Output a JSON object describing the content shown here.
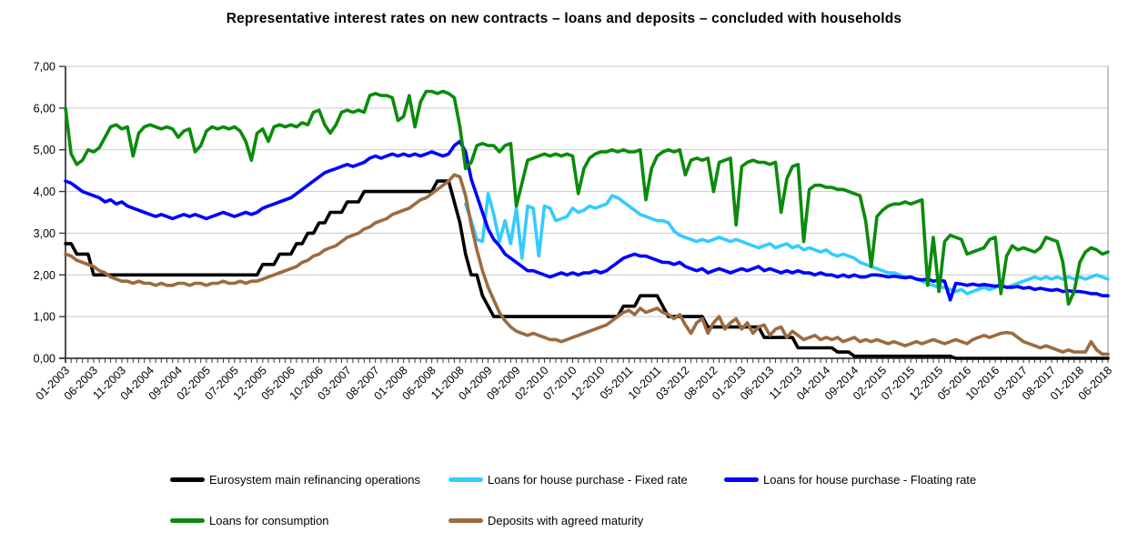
{
  "chart": {
    "title": "Representative interest rates on new contracts – loans and deposits – concluded with households"
  },
  "chart_data": {
    "type": "line",
    "title": "Representative interest rates on new contracts – loans and deposits – concluded with households",
    "xlabel": "",
    "ylabel": "",
    "ylim": [
      0,
      7
    ],
    "grid": true,
    "legend_position": "bottom",
    "x_months_count": 186,
    "x_start": "01-2003",
    "x_end": "06-2018",
    "x_tick_every_months": 5,
    "x_tick_labels": [
      "01-2003",
      "06-2003",
      "11-2003",
      "04-2004",
      "09-2004",
      "02-2005",
      "07-2005",
      "12-2005",
      "05-2006",
      "10-2006",
      "03-2007",
      "08-2007",
      "01-2008",
      "06-2008",
      "11-2008",
      "04-2009",
      "09-2009",
      "02-2010",
      "07-2010",
      "12-2010",
      "05-2011",
      "10-2011",
      "03-2012",
      "08-2012",
      "01-2013",
      "06-2013",
      "11-2013",
      "04-2014",
      "09-2014",
      "02-2015",
      "07-2015",
      "12-2015",
      "05-2016",
      "10-2016",
      "03-2017",
      "08-2017",
      "01-2018",
      "06-2018"
    ],
    "y_ticks": [
      "0,00",
      "1,00",
      "2,00",
      "3,00",
      "4,00",
      "5,00",
      "6,00",
      "7,00"
    ],
    "series": [
      {
        "name": "Eurosystem main refinancing operations",
        "key": "mro",
        "color": "#000000",
        "values": [
          2.75,
          2.75,
          2.5,
          2.5,
          2.5,
          2.0,
          2.0,
          2.0,
          2.0,
          2.0,
          2.0,
          2.0,
          2.0,
          2.0,
          2.0,
          2.0,
          2.0,
          2.0,
          2.0,
          2.0,
          2.0,
          2.0,
          2.0,
          2.0,
          2.0,
          2.0,
          2.0,
          2.0,
          2.0,
          2.0,
          2.0,
          2.0,
          2.0,
          2.0,
          2.0,
          2.25,
          2.25,
          2.25,
          2.5,
          2.5,
          2.5,
          2.75,
          2.75,
          3.0,
          3.0,
          3.25,
          3.25,
          3.5,
          3.5,
          3.5,
          3.75,
          3.75,
          3.75,
          4.0,
          4.0,
          4.0,
          4.0,
          4.0,
          4.0,
          4.0,
          4.0,
          4.0,
          4.0,
          4.0,
          4.0,
          4.0,
          4.25,
          4.25,
          4.25,
          3.75,
          3.25,
          2.5,
          2.0,
          2.0,
          1.5,
          1.25,
          1.0,
          1.0,
          1.0,
          1.0,
          1.0,
          1.0,
          1.0,
          1.0,
          1.0,
          1.0,
          1.0,
          1.0,
          1.0,
          1.0,
          1.0,
          1.0,
          1.0,
          1.0,
          1.0,
          1.0,
          1.0,
          1.0,
          1.0,
          1.25,
          1.25,
          1.25,
          1.5,
          1.5,
          1.5,
          1.5,
          1.25,
          1.0,
          1.0,
          1.0,
          1.0,
          1.0,
          1.0,
          1.0,
          0.75,
          0.75,
          0.75,
          0.75,
          0.75,
          0.75,
          0.75,
          0.75,
          0.75,
          0.75,
          0.5,
          0.5,
          0.5,
          0.5,
          0.5,
          0.5,
          0.25,
          0.25,
          0.25,
          0.25,
          0.25,
          0.25,
          0.25,
          0.15,
          0.15,
          0.15,
          0.05,
          0.05,
          0.05,
          0.05,
          0.05,
          0.05,
          0.05,
          0.05,
          0.05,
          0.05,
          0.05,
          0.05,
          0.05,
          0.05,
          0.05,
          0.05,
          0.05,
          0.05,
          0.0,
          0.0,
          0.0,
          0.0,
          0.0,
          0.0,
          0.0,
          0.0,
          0.0,
          0.0,
          0.0,
          0.0,
          0.0,
          0.0,
          0.0,
          0.0,
          0.0,
          0.0,
          0.0,
          0.0,
          0.0,
          0.0,
          0.0,
          0.0,
          0.0,
          0.0,
          0.0,
          0.0
        ]
      },
      {
        "name": "Loans for house purchase - Fixed rate",
        "key": "house-fixed",
        "color": "#33CCFF",
        "values": [
          null,
          null,
          null,
          null,
          null,
          null,
          null,
          null,
          null,
          null,
          null,
          null,
          null,
          null,
          null,
          null,
          null,
          null,
          null,
          null,
          null,
          null,
          null,
          null,
          null,
          null,
          null,
          null,
          null,
          null,
          null,
          null,
          null,
          null,
          null,
          null,
          null,
          null,
          null,
          null,
          null,
          null,
          null,
          null,
          null,
          null,
          null,
          null,
          null,
          null,
          null,
          null,
          null,
          null,
          null,
          null,
          null,
          null,
          null,
          null,
          null,
          null,
          null,
          null,
          null,
          null,
          null,
          null,
          null,
          null,
          null,
          3.7,
          3.3,
          2.85,
          2.8,
          3.95,
          3.45,
          2.8,
          3.3,
          2.75,
          3.6,
          2.4,
          3.65,
          3.6,
          2.45,
          3.65,
          3.6,
          3.3,
          3.35,
          3.4,
          3.6,
          3.5,
          3.55,
          3.65,
          3.6,
          3.65,
          3.7,
          3.9,
          3.85,
          3.75,
          3.65,
          3.55,
          3.45,
          3.4,
          3.35,
          3.3,
          3.3,
          3.25,
          3.05,
          2.95,
          2.9,
          2.85,
          2.8,
          2.85,
          2.8,
          2.85,
          2.9,
          2.85,
          2.8,
          2.85,
          2.8,
          2.75,
          2.7,
          2.65,
          2.7,
          2.75,
          2.65,
          2.7,
          2.75,
          2.65,
          2.7,
          2.6,
          2.65,
          2.6,
          2.55,
          2.6,
          2.5,
          2.45,
          2.5,
          2.45,
          2.4,
          2.3,
          2.25,
          2.2,
          2.15,
          2.1,
          2.05,
          2.05,
          2.0,
          1.95,
          1.95,
          1.9,
          1.85,
          1.8,
          1.75,
          1.7,
          1.7,
          1.65,
          1.6,
          1.65,
          1.55,
          1.6,
          1.65,
          1.7,
          1.65,
          1.7,
          1.75,
          1.7,
          1.75,
          1.8,
          1.85,
          1.9,
          1.95,
          1.9,
          1.95,
          1.9,
          1.95,
          1.9,
          1.95,
          1.9,
          1.95,
          1.9,
          1.95,
          2.0,
          1.95,
          1.9
        ]
      },
      {
        "name": "Loans for house purchase - Floating rate",
        "key": "house-floating",
        "color": "#0000FF",
        "values": [
          4.25,
          4.2,
          4.1,
          4.0,
          3.95,
          3.9,
          3.85,
          3.75,
          3.8,
          3.7,
          3.75,
          3.65,
          3.6,
          3.55,
          3.5,
          3.45,
          3.4,
          3.45,
          3.4,
          3.35,
          3.4,
          3.45,
          3.4,
          3.45,
          3.4,
          3.35,
          3.4,
          3.45,
          3.5,
          3.45,
          3.4,
          3.45,
          3.5,
          3.45,
          3.5,
          3.6,
          3.65,
          3.7,
          3.75,
          3.8,
          3.85,
          3.95,
          4.05,
          4.15,
          4.25,
          4.35,
          4.45,
          4.5,
          4.55,
          4.6,
          4.65,
          4.6,
          4.65,
          4.7,
          4.8,
          4.85,
          4.8,
          4.85,
          4.9,
          4.85,
          4.9,
          4.85,
          4.9,
          4.85,
          4.9,
          4.95,
          4.9,
          4.85,
          4.9,
          5.1,
          5.2,
          4.95,
          4.3,
          3.9,
          3.5,
          3.1,
          2.85,
          2.7,
          2.5,
          2.4,
          2.3,
          2.2,
          2.1,
          2.1,
          2.05,
          2.0,
          1.95,
          2.0,
          2.05,
          2.0,
          2.05,
          2.0,
          2.05,
          2.05,
          2.1,
          2.05,
          2.1,
          2.2,
          2.3,
          2.4,
          2.45,
          2.5,
          2.45,
          2.45,
          2.4,
          2.35,
          2.3,
          2.3,
          2.25,
          2.3,
          2.2,
          2.15,
          2.1,
          2.15,
          2.05,
          2.1,
          2.15,
          2.1,
          2.05,
          2.1,
          2.15,
          2.1,
          2.15,
          2.2,
          2.1,
          2.15,
          2.1,
          2.05,
          2.1,
          2.05,
          2.1,
          2.05,
          2.05,
          2.0,
          2.05,
          2.0,
          2.0,
          1.95,
          2.0,
          1.95,
          2.0,
          1.95,
          1.95,
          2.0,
          2.0,
          1.98,
          1.95,
          1.97,
          1.95,
          1.93,
          1.95,
          1.9,
          1.88,
          1.9,
          1.85,
          1.87,
          1.85,
          1.4,
          1.8,
          1.78,
          1.75,
          1.78,
          1.75,
          1.77,
          1.75,
          1.73,
          1.75,
          1.7,
          1.7,
          1.72,
          1.68,
          1.7,
          1.65,
          1.68,
          1.65,
          1.63,
          1.65,
          1.6,
          1.62,
          1.6,
          1.6,
          1.58,
          1.55,
          1.55,
          1.5,
          1.5
        ]
      },
      {
        "name": "Loans for consumption",
        "key": "consumption",
        "color": "#0B8B0B",
        "values": [
          6.0,
          4.9,
          4.65,
          4.75,
          5.0,
          4.95,
          5.05,
          5.3,
          5.55,
          5.6,
          5.5,
          5.55,
          4.85,
          5.4,
          5.55,
          5.6,
          5.55,
          5.5,
          5.55,
          5.5,
          5.3,
          5.45,
          5.5,
          4.95,
          5.1,
          5.45,
          5.55,
          5.5,
          5.55,
          5.5,
          5.55,
          5.45,
          5.2,
          4.75,
          5.4,
          5.5,
          5.2,
          5.55,
          5.6,
          5.55,
          5.6,
          5.55,
          5.65,
          5.6,
          5.9,
          5.95,
          5.6,
          5.4,
          5.6,
          5.9,
          5.95,
          5.9,
          5.95,
          5.9,
          6.3,
          6.35,
          6.3,
          6.3,
          6.25,
          5.7,
          5.8,
          6.3,
          5.55,
          6.15,
          6.4,
          6.4,
          6.35,
          6.4,
          6.35,
          6.25,
          5.55,
          4.55,
          4.7,
          5.1,
          5.15,
          5.1,
          5.1,
          4.95,
          5.1,
          5.15,
          3.65,
          4.2,
          4.75,
          4.8,
          4.85,
          4.9,
          4.85,
          4.9,
          4.85,
          4.9,
          4.85,
          3.95,
          4.55,
          4.8,
          4.9,
          4.95,
          4.95,
          5.0,
          4.95,
          5.0,
          4.95,
          4.95,
          5.0,
          3.8,
          4.55,
          4.85,
          4.95,
          5.0,
          4.95,
          5.0,
          4.4,
          4.75,
          4.8,
          4.75,
          4.8,
          4.0,
          4.7,
          4.75,
          4.8,
          3.2,
          4.6,
          4.7,
          4.75,
          4.7,
          4.7,
          4.65,
          4.7,
          3.5,
          4.3,
          4.6,
          4.65,
          2.8,
          4.05,
          4.15,
          4.15,
          4.1,
          4.1,
          4.05,
          4.05,
          4.0,
          3.95,
          3.9,
          3.3,
          2.2,
          3.4,
          3.55,
          3.65,
          3.7,
          3.7,
          3.75,
          3.7,
          3.75,
          3.8,
          1.75,
          2.9,
          1.6,
          2.8,
          2.95,
          2.9,
          2.85,
          2.5,
          2.55,
          2.6,
          2.65,
          2.85,
          2.9,
          1.55,
          2.45,
          2.7,
          2.6,
          2.65,
          2.6,
          2.55,
          2.65,
          2.9,
          2.85,
          2.8,
          2.3,
          1.3,
          1.6,
          2.3,
          2.55,
          2.65,
          2.6,
          2.5,
          2.55
        ]
      },
      {
        "name": "Deposits with agreed maturity",
        "key": "deposits",
        "color": "#9C6B41",
        "values": [
          2.5,
          2.45,
          2.35,
          2.3,
          2.25,
          2.2,
          2.1,
          2.05,
          1.95,
          1.9,
          1.85,
          1.85,
          1.8,
          1.85,
          1.8,
          1.8,
          1.75,
          1.8,
          1.75,
          1.75,
          1.8,
          1.8,
          1.75,
          1.8,
          1.8,
          1.75,
          1.8,
          1.8,
          1.85,
          1.8,
          1.8,
          1.85,
          1.8,
          1.85,
          1.85,
          1.9,
          1.95,
          2.0,
          2.05,
          2.1,
          2.15,
          2.2,
          2.3,
          2.35,
          2.45,
          2.5,
          2.6,
          2.65,
          2.7,
          2.8,
          2.9,
          2.95,
          3.0,
          3.1,
          3.15,
          3.25,
          3.3,
          3.35,
          3.45,
          3.5,
          3.55,
          3.6,
          3.7,
          3.8,
          3.85,
          3.95,
          4.05,
          4.15,
          4.25,
          4.4,
          4.35,
          3.9,
          3.2,
          2.6,
          2.1,
          1.7,
          1.4,
          1.1,
          0.9,
          0.75,
          0.65,
          0.6,
          0.55,
          0.6,
          0.55,
          0.5,
          0.45,
          0.45,
          0.4,
          0.45,
          0.5,
          0.55,
          0.6,
          0.65,
          0.7,
          0.75,
          0.8,
          0.9,
          1.0,
          1.1,
          1.15,
          1.05,
          1.2,
          1.1,
          1.15,
          1.2,
          1.1,
          1.05,
          0.95,
          1.05,
          0.8,
          0.6,
          0.85,
          0.95,
          0.6,
          0.85,
          1.0,
          0.7,
          0.85,
          0.95,
          0.7,
          0.85,
          0.6,
          0.75,
          0.8,
          0.55,
          0.7,
          0.75,
          0.5,
          0.65,
          0.55,
          0.45,
          0.5,
          0.55,
          0.45,
          0.5,
          0.45,
          0.5,
          0.4,
          0.45,
          0.5,
          0.4,
          0.45,
          0.4,
          0.45,
          0.4,
          0.35,
          0.4,
          0.35,
          0.3,
          0.35,
          0.4,
          0.35,
          0.4,
          0.45,
          0.4,
          0.35,
          0.4,
          0.45,
          0.4,
          0.35,
          0.45,
          0.5,
          0.55,
          0.5,
          0.55,
          0.6,
          0.62,
          0.6,
          0.5,
          0.4,
          0.35,
          0.3,
          0.25,
          0.3,
          0.25,
          0.2,
          0.15,
          0.2,
          0.15,
          0.15,
          0.15,
          0.4,
          0.2,
          0.1,
          0.1
        ]
      }
    ],
    "colors": {
      "grid": "#C9C9C9",
      "axis": "#3A3A3A",
      "plot_right_border": "#8C8C8C"
    }
  }
}
